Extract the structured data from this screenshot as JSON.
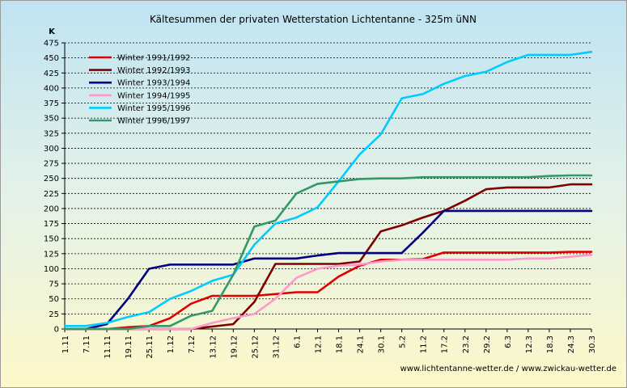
{
  "chart_data": {
    "type": "line",
    "title": "Kältesummen der privaten Wetterstation Lichtentanne - 325m üNN",
    "ylabel": "K",
    "xlabel": "",
    "ylim": [
      0,
      475
    ],
    "yticks": [
      0,
      25,
      50,
      75,
      100,
      125,
      150,
      175,
      200,
      225,
      250,
      275,
      300,
      325,
      350,
      375,
      400,
      425,
      450,
      475
    ],
    "x": [
      "1.11",
      "7.11",
      "11.11",
      "19.11",
      "25.11",
      "1.12",
      "7.12",
      "13.12",
      "19.12",
      "25.12",
      "31.12",
      "6.1",
      "12.1",
      "18.1",
      "24.1",
      "30.1",
      "5.2",
      "11.2",
      "17.2",
      "23.2",
      "29.2",
      "6.3",
      "12.3",
      "18.3",
      "24.3",
      "30.3"
    ],
    "grid": true,
    "legend_position": "top-left",
    "source": "www.lichtentanne-wetter.de / www.zwickau-wetter.de",
    "series": [
      {
        "name": "Winter 1991/1992",
        "color": "#e00000",
        "values": [
          0,
          0,
          0,
          3,
          5,
          18,
          42,
          55,
          55,
          55,
          58,
          61,
          61,
          87,
          105,
          115,
          115,
          116,
          127,
          127,
          127,
          127,
          127,
          127,
          128,
          128
        ]
      },
      {
        "name": "Winter 1992/1993",
        "color": "#800000",
        "values": [
          0,
          0,
          0,
          0,
          0,
          0,
          0,
          4,
          8,
          45,
          108,
          108,
          108,
          108,
          112,
          162,
          172,
          185,
          196,
          213,
          232,
          235,
          235,
          235,
          240,
          240
        ]
      },
      {
        "name": "Winter 1993/1994",
        "color": "#000080",
        "values": [
          0,
          0,
          8,
          50,
          100,
          107,
          107,
          107,
          107,
          117,
          117,
          117,
          122,
          126,
          126,
          126,
          126,
          160,
          196,
          196,
          196,
          196,
          196,
          196,
          196,
          196
        ]
      },
      {
        "name": "Winter 1994/1995",
        "color": "#ff99cc",
        "values": [
          0,
          0,
          0,
          0,
          0,
          0,
          0,
          10,
          18,
          25,
          50,
          85,
          100,
          105,
          107,
          112,
          115,
          115,
          115,
          115,
          115,
          115,
          117,
          117,
          120,
          123
        ]
      },
      {
        "name": "Winter 1995/1996",
        "color": "#00ccff",
        "values": [
          5,
          5,
          10,
          20,
          28,
          50,
          63,
          80,
          90,
          140,
          175,
          185,
          202,
          245,
          290,
          323,
          383,
          390,
          407,
          420,
          427,
          443,
          455,
          455,
          455,
          460
        ]
      },
      {
        "name": "Winter 1996/1997",
        "color": "#339966",
        "values": [
          0,
          0,
          0,
          0,
          5,
          5,
          22,
          30,
          90,
          170,
          180,
          225,
          241,
          245,
          249,
          250,
          250,
          252,
          252,
          252,
          252,
          252,
          252,
          254,
          255,
          255
        ]
      }
    ]
  }
}
